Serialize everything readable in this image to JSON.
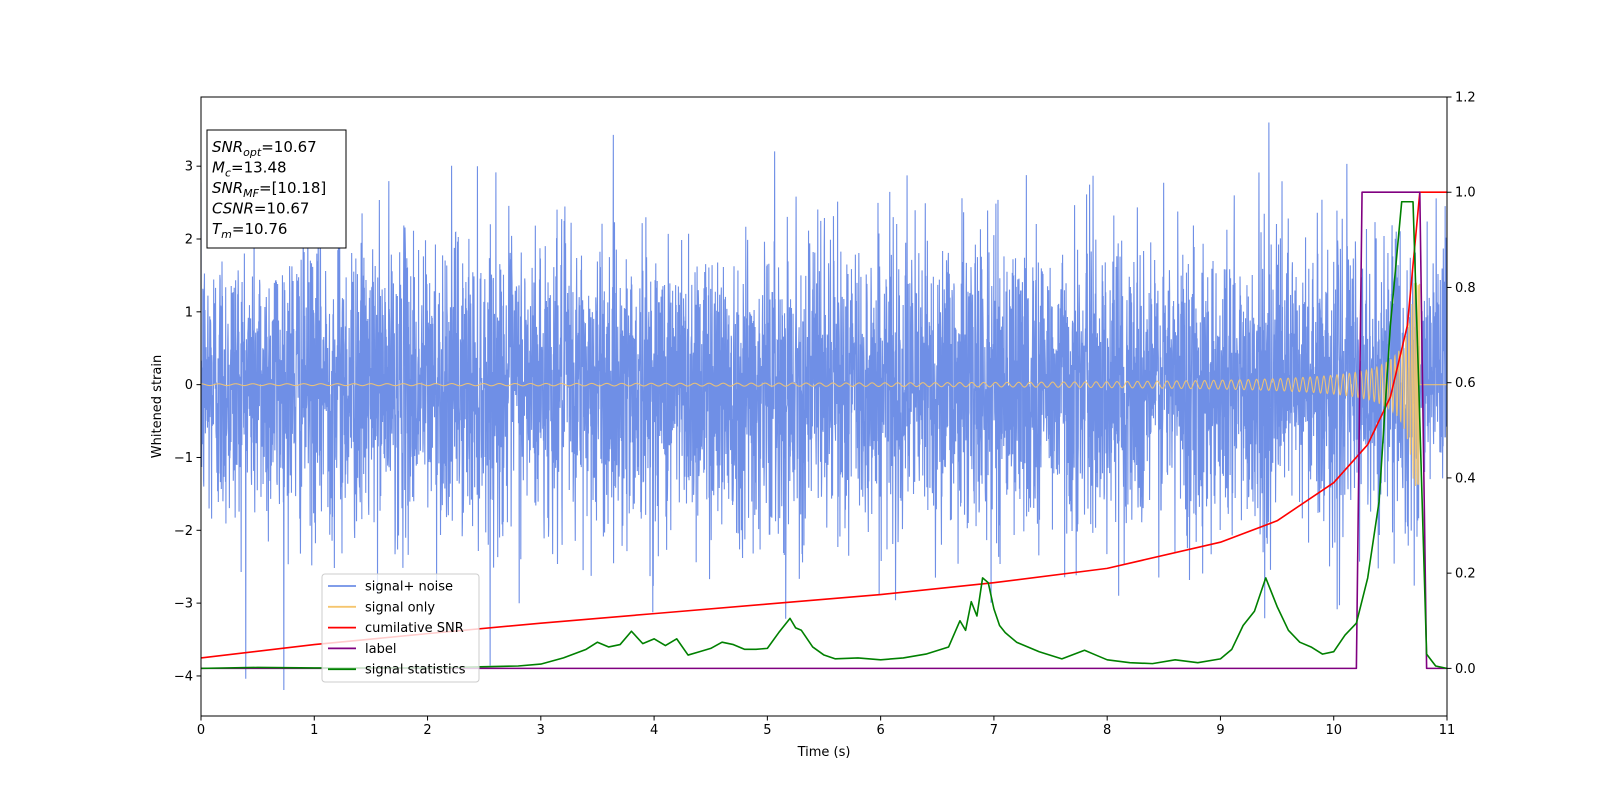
{
  "chart_data": {
    "type": "line",
    "xlabel": "Time (s)",
    "ylabel": "Whitened strain",
    "xlim": [
      0,
      11
    ],
    "ylim": [
      -4.55,
      3.95
    ],
    "y2lim": [
      -0.1,
      1.2
    ],
    "grid": false,
    "xticks": [
      0,
      1,
      2,
      3,
      4,
      5,
      6,
      7,
      8,
      9,
      10,
      11
    ],
    "yticks": [
      -4,
      -3,
      -2,
      -1,
      0,
      1,
      2,
      3
    ],
    "y2ticks": [
      0.0,
      0.2,
      0.4,
      0.6,
      0.8,
      1.0,
      1.2
    ],
    "legend_position": "lower-left",
    "annotation": {
      "lines": [
        {
          "base": "SNR",
          "sub": "opt",
          "value": "=10.67"
        },
        {
          "base": "M",
          "sub": "c",
          "value": "=13.48"
        },
        {
          "base": "SNR",
          "sub": "MF",
          "value": "=[10.18]"
        },
        {
          "base": "CSNR",
          "sub": "",
          "value": "=10.67"
        },
        {
          "base": "T",
          "sub": "m",
          "value": "=10.76"
        }
      ]
    },
    "series": [
      {
        "name": "signal+ noise",
        "color": "#6f8fe6",
        "axis": "left",
        "kind": "noise",
        "sigma": 1.0,
        "range": [
          -4.2,
          3.6
        ]
      },
      {
        "name": "signal only",
        "color": "#f5c56e",
        "axis": "left",
        "kind": "chirp",
        "t_merger": 10.76,
        "peak_amplitude": 1.0
      },
      {
        "name": "cumilative SNR",
        "color": "#ff0000",
        "axis": "right",
        "x": [
          0,
          1,
          2,
          3,
          4,
          5,
          6,
          7,
          8,
          9,
          9.5,
          10,
          10.3,
          10.5,
          10.65,
          10.76,
          11
        ],
        "values": [
          0.022,
          0.05,
          0.073,
          0.095,
          0.115,
          0.135,
          0.155,
          0.18,
          0.21,
          0.265,
          0.31,
          0.39,
          0.47,
          0.57,
          0.72,
          1.0,
          1.0
        ]
      },
      {
        "name": "label",
        "color": "#800080",
        "axis": "right",
        "x": [
          0,
          10.2,
          10.25,
          10.76,
          10.82,
          11
        ],
        "values": [
          0,
          0,
          1,
          1,
          0,
          0
        ]
      },
      {
        "name": "signal statistics",
        "color": "#008000",
        "axis": "right",
        "x": [
          0,
          0.5,
          1,
          2,
          2.8,
          3,
          3.2,
          3.4,
          3.5,
          3.6,
          3.7,
          3.8,
          3.9,
          4.0,
          4.1,
          4.2,
          4.3,
          4.4,
          4.5,
          4.6,
          4.7,
          4.8,
          4.9,
          5.0,
          5.1,
          5.2,
          5.25,
          5.3,
          5.4,
          5.5,
          5.6,
          5.8,
          6.0,
          6.2,
          6.4,
          6.6,
          6.7,
          6.75,
          6.8,
          6.85,
          6.9,
          6.95,
          7.0,
          7.05,
          7.1,
          7.2,
          7.3,
          7.4,
          7.6,
          7.8,
          7.9,
          8.0,
          8.2,
          8.4,
          8.6,
          8.8,
          9.0,
          9.1,
          9.2,
          9.3,
          9.4,
          9.45,
          9.5,
          9.6,
          9.7,
          9.8,
          9.9,
          10.0,
          10.1,
          10.2,
          10.3,
          10.4,
          10.5,
          10.6,
          10.7,
          10.75,
          10.82,
          10.9,
          11
        ],
        "values": [
          0,
          0.002,
          0.001,
          0.001,
          0.005,
          0.009,
          0.022,
          0.04,
          0.055,
          0.045,
          0.05,
          0.078,
          0.052,
          0.062,
          0.048,
          0.062,
          0.028,
          0.035,
          0.042,
          0.055,
          0.05,
          0.04,
          0.04,
          0.042,
          0.075,
          0.105,
          0.085,
          0.08,
          0.045,
          0.028,
          0.02,
          0.022,
          0.018,
          0.022,
          0.03,
          0.045,
          0.1,
          0.08,
          0.14,
          0.11,
          0.19,
          0.18,
          0.125,
          0.09,
          0.075,
          0.055,
          0.045,
          0.035,
          0.02,
          0.038,
          0.028,
          0.018,
          0.012,
          0.01,
          0.018,
          0.012,
          0.02,
          0.04,
          0.09,
          0.12,
          0.19,
          0.16,
          0.13,
          0.08,
          0.055,
          0.045,
          0.03,
          0.035,
          0.07,
          0.095,
          0.19,
          0.35,
          0.72,
          0.98,
          0.98,
          0.6,
          0.03,
          0.005,
          0.0
        ]
      }
    ]
  }
}
